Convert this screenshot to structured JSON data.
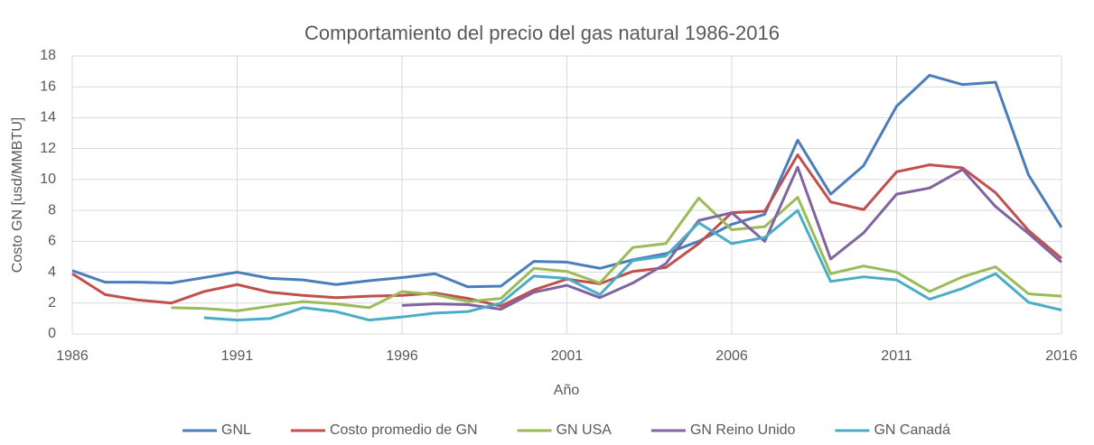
{
  "chart_data": {
    "type": "line",
    "title": "Comportamiento del precio del gas natural 1986-2016",
    "xlabel": "Año",
    "ylabel": "Costo GN [usd/MMBTU]",
    "x": [
      1986,
      1987,
      1988,
      1989,
      1990,
      1991,
      1992,
      1993,
      1994,
      1995,
      1996,
      1997,
      1998,
      1999,
      2000,
      2001,
      2002,
      2003,
      2004,
      2005,
      2006,
      2007,
      2008,
      2009,
      2010,
      2011,
      2012,
      2013,
      2014,
      2015,
      2016
    ],
    "xlim": [
      1986,
      2016
    ],
    "xticks": [
      1986,
      1991,
      1996,
      2001,
      2006,
      2011,
      2016
    ],
    "ylim": [
      0,
      18
    ],
    "yticks": [
      0,
      2,
      4,
      6,
      8,
      10,
      12,
      14,
      16,
      18
    ],
    "grid": true,
    "legend": "bottom",
    "series": [
      {
        "name": "GNL",
        "color": "#4a7ebb",
        "values": [
          4.1,
          3.35,
          3.35,
          3.3,
          3.65,
          4.0,
          3.6,
          3.5,
          3.2,
          3.45,
          3.65,
          3.9,
          3.05,
          3.1,
          4.7,
          4.65,
          4.25,
          4.8,
          5.2,
          6.0,
          7.1,
          7.75,
          12.55,
          9.05,
          10.9,
          14.75,
          16.75,
          16.15,
          16.3,
          10.3,
          6.9
        ]
      },
      {
        "name": "Costo promedio de GN",
        "color": "#c0504d",
        "values": [
          3.9,
          2.55,
          2.2,
          2.0,
          2.75,
          3.2,
          2.7,
          2.5,
          2.35,
          2.45,
          2.5,
          2.65,
          2.3,
          1.8,
          2.85,
          3.55,
          3.25,
          4.05,
          4.3,
          5.85,
          7.85,
          7.95,
          11.6,
          8.55,
          8.05,
          10.5,
          10.95,
          10.75,
          9.15,
          6.7,
          4.9
        ]
      },
      {
        "name": "GN USA",
        "color": "#9bbb59",
        "values": [
          null,
          null,
          null,
          1.7,
          1.65,
          1.5,
          1.8,
          2.1,
          1.95,
          1.7,
          2.75,
          2.55,
          2.1,
          2.3,
          4.25,
          4.05,
          3.3,
          5.6,
          5.85,
          8.8,
          6.75,
          6.95,
          8.85,
          3.9,
          4.4,
          4.0,
          2.75,
          3.7,
          4.35,
          2.6,
          2.45
        ]
      },
      {
        "name": "GN Reino Unido",
        "color": "#8064a2",
        "values": [
          null,
          null,
          null,
          null,
          null,
          null,
          null,
          null,
          null,
          null,
          1.85,
          1.95,
          1.9,
          1.6,
          2.7,
          3.15,
          2.35,
          3.3,
          4.55,
          7.35,
          7.85,
          6.0,
          10.8,
          4.85,
          6.55,
          9.05,
          9.45,
          10.65,
          8.25,
          6.5,
          4.65
        ]
      },
      {
        "name": "GN Canadá",
        "color": "#4bacc6",
        "values": [
          null,
          null,
          null,
          null,
          1.05,
          0.9,
          1.0,
          1.7,
          1.45,
          0.9,
          1.1,
          1.35,
          1.45,
          2.0,
          3.75,
          3.6,
          2.55,
          4.75,
          5.05,
          7.2,
          5.85,
          6.25,
          8.0,
          3.4,
          3.7,
          3.5,
          2.25,
          2.95,
          3.9,
          2.05,
          1.55
        ]
      }
    ]
  }
}
